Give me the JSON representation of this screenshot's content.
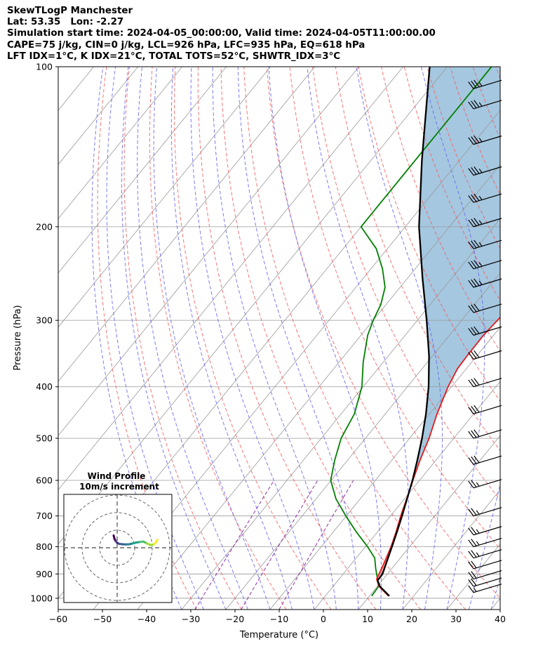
{
  "title_lines": [
    "SkewTLogP Manchester",
    "Lat: 53.35   Lon: -2.27",
    "Simulation start time: 2024-04-05_00:00:00, Valid time: 2024-04-05T11:00:00.00",
    "CAPE=75 j/kg, CIN=0 j/kg, LCL=926 hPa, LFC=935 hPa, EQ=618 hPa",
    "LFT IDX=1°C, K IDX=21°C, TOTAL TOTS=52°C, SHWTR_IDX=3°C"
  ],
  "chart_data": {
    "type": "skewt",
    "xlabel": "Temperature (°C)",
    "ylabel": "Pressure (hPa)",
    "xlim": [
      -60,
      40
    ],
    "ylim": [
      1050,
      100
    ],
    "y_scale": "log",
    "x_ticks": [
      "−60",
      "−50",
      "−40",
      "−30",
      "−20",
      "−10",
      "0",
      "10",
      "20",
      "30",
      "40"
    ],
    "y_ticks": [
      "100",
      "200",
      "300",
      "400",
      "500",
      "600",
      "700",
      "800",
      "900",
      "1000"
    ],
    "grid": true,
    "colors": {
      "temperature": "#e41a1c",
      "dewpoint": "#008000",
      "parcel": "#000000",
      "cape_fill": "#a0c4de",
      "cin_fill": "#f0a0a0",
      "dry_adiabat": "#f06060",
      "moist_adiabat": "#6666ee",
      "mixing_ratio": "#9030a0",
      "isotherm": "#999999"
    },
    "series": [
      {
        "key": "temperature",
        "pressure": [
          990,
          950,
          920,
          880,
          840,
          800,
          750,
          700,
          650,
          600,
          550,
          500,
          450,
          400,
          370,
          350,
          320,
          300,
          280,
          260,
          240,
          220,
          200,
          180,
          160,
          150,
          140,
          130,
          120,
          110,
          100
        ],
        "values": [
          14.3,
          10.4,
          8.5,
          7.7,
          6.8,
          5.8,
          4.2,
          2.3,
          0.5,
          -1.5,
          -3.6,
          -5.6,
          -8.3,
          -10.8,
          -12.0,
          -12.2,
          -12.3,
          -11.9,
          -11.4,
          -10.3,
          -9.0,
          -7.8,
          -6.3,
          -4.3,
          -1.7,
          0.3,
          3.0,
          5.9,
          7.0,
          8.8,
          10.0
        ]
      },
      {
        "key": "dewpoint",
        "pressure": [
          990,
          950,
          920,
          880,
          840,
          800,
          750,
          700,
          650,
          600,
          550,
          500,
          450,
          400,
          360,
          320,
          300,
          280,
          260,
          240,
          220,
          200,
          180,
          160,
          140,
          120,
          100
        ],
        "values": [
          10.5,
          10.3,
          8.7,
          6.4,
          4.2,
          0.5,
          -4.8,
          -10.1,
          -15.5,
          -20.1,
          -22.9,
          -25.5,
          -27.0,
          -30.3,
          -34.5,
          -38.5,
          -40.0,
          -41.2,
          -43.4,
          -47.4,
          -52.5,
          -60.0,
          -60.0,
          -60.0,
          -60.0,
          -60.0,
          -60.0
        ]
      },
      {
        "key": "parcel",
        "pressure": [
          990,
          950,
          926,
          900,
          850,
          800,
          750,
          700,
          650,
          600,
          550,
          500,
          450,
          400,
          350,
          300,
          250,
          200,
          150,
          100
        ],
        "values": [
          14.5,
          10.6,
          9.0,
          8.9,
          7.5,
          6.0,
          4.4,
          2.6,
          0.6,
          -1.6,
          -4.2,
          -7.2,
          -10.8,
          -15.2,
          -20.8,
          -27.9,
          -36.6,
          -46.9,
          -58.5,
          -74.0
        ]
      }
    ],
    "barbs": {
      "pressure": [
        975,
        950,
        920,
        880,
        840,
        800,
        760,
        700,
        620,
        560,
        500,
        450,
        400,
        355,
        320,
        290,
        260,
        240,
        220,
        200,
        180,
        160,
        140,
        120,
        110
      ],
      "speed_kt": [
        15,
        20,
        22,
        24,
        25,
        26,
        27,
        28,
        29,
        30,
        30,
        31,
        32,
        32,
        33,
        34,
        35,
        36,
        37,
        38,
        37,
        37,
        36,
        36,
        36
      ],
      "direction_deg": [
        260,
        262,
        264,
        266,
        268,
        270,
        270,
        272,
        272,
        274,
        274,
        275,
        275,
        276,
        276,
        277,
        277,
        277,
        278,
        278,
        278,
        278,
        278,
        278,
        278
      ]
    },
    "hodograph": {
      "title": "Wind Profile",
      "subtitle": "10m/s increment",
      "u": [
        -2,
        -1.5,
        -0.8,
        0,
        1.2,
        3,
        5,
        7,
        9,
        11,
        13,
        15,
        17,
        19,
        21,
        22,
        23
      ],
      "v": [
        -7,
        -5,
        -3.8,
        -2.8,
        -2.2,
        -2,
        -1.9,
        -2,
        -2.5,
        -3,
        -3.3,
        -3.5,
        -2.5,
        -1.5,
        -2,
        -3,
        -4.5
      ],
      "ring_step": 10,
      "rings": 3
    }
  }
}
